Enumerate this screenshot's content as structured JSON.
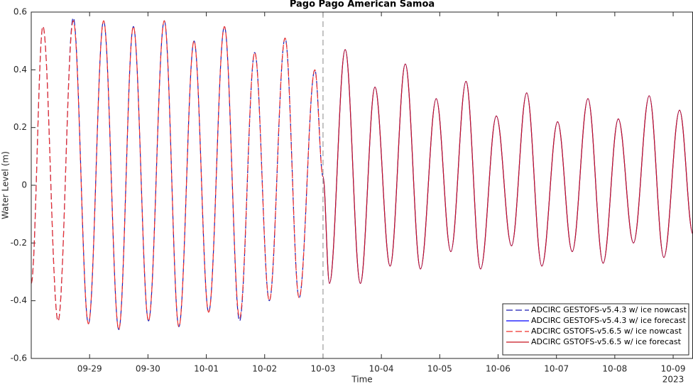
{
  "chart_data": {
    "type": "line",
    "title": "Pago Pago American Samoa",
    "xlabel": "Time",
    "ylabel": "Water Level (m)",
    "year": "2023",
    "x": [
      28.0,
      28.2,
      28.46,
      28.72,
      28.98,
      29.24,
      29.5,
      29.75,
      30.01,
      30.28,
      30.53,
      30.79,
      31.04,
      31.31,
      31.57,
      31.83,
      32.08,
      32.35,
      32.59,
      32.86,
      33.0,
      33.11,
      33.38,
      33.64,
      33.89,
      34.15,
      34.41,
      34.67,
      34.94,
      35.19,
      35.45,
      35.7,
      35.97,
      36.23,
      36.49,
      36.75,
      37.02,
      37.27,
      37.54,
      37.8,
      38.06,
      38.32,
      38.59,
      38.84,
      39.11,
      39.34
    ],
    "series": [
      {
        "name": "ADCIRC GESTOFS-v5.4.3 w/ ice nowcast",
        "color": "#1c1cb4",
        "dashed": true,
        "values": [
          -0.34,
          0.55,
          -0.47,
          0.58,
          -0.48,
          0.57,
          -0.5,
          0.55,
          -0.47,
          0.57,
          -0.49,
          0.5,
          -0.44,
          0.55,
          -0.47,
          0.46,
          -0.4,
          0.51,
          -0.39,
          0.4,
          0.03,
          null,
          null,
          null,
          null,
          null,
          null,
          null,
          null,
          null,
          null,
          null,
          null,
          null,
          null,
          null,
          null,
          null,
          null,
          null,
          null,
          null,
          null,
          null,
          null,
          null
        ]
      },
      {
        "name": "ADCIRC GESTOFS-v5.4.3 w/ ice forecast",
        "color": "#0000ff",
        "dashed": false,
        "values": [
          null,
          null,
          null,
          null,
          null,
          null,
          null,
          null,
          null,
          null,
          null,
          null,
          null,
          null,
          null,
          null,
          null,
          null,
          null,
          null,
          0.03,
          -0.34,
          0.47,
          -0.34,
          0.34,
          -0.28,
          0.42,
          -0.29,
          0.3,
          -0.23,
          0.36,
          -0.29,
          0.24,
          -0.21,
          0.32,
          -0.28,
          0.22,
          -0.23,
          0.3,
          -0.27,
          0.23,
          -0.2,
          0.31,
          -0.25,
          0.26,
          -0.17
        ]
      },
      {
        "name": "ADCIRC GSTOFS-v5.6.5 w/ ice nowcast",
        "color": "#f0302a",
        "dashed": true,
        "values": [
          -0.34,
          0.55,
          -0.47,
          0.57,
          -0.48,
          0.57,
          -0.5,
          0.55,
          -0.47,
          0.57,
          -0.49,
          0.5,
          -0.44,
          0.55,
          -0.46,
          0.46,
          -0.4,
          0.51,
          -0.39,
          0.4,
          0.03,
          null,
          null,
          null,
          null,
          null,
          null,
          null,
          null,
          null,
          null,
          null,
          null,
          null,
          null,
          null,
          null,
          null,
          null,
          null,
          null,
          null,
          null,
          null,
          null,
          null
        ]
      },
      {
        "name": "ADCIRC GSTOFS-v5.6.5 w/ ice forecast",
        "color": "#c8141e",
        "dashed": false,
        "values": [
          null,
          null,
          null,
          null,
          null,
          null,
          null,
          null,
          null,
          null,
          null,
          null,
          null,
          null,
          null,
          null,
          null,
          null,
          null,
          null,
          0.03,
          -0.34,
          0.47,
          -0.34,
          0.34,
          -0.28,
          0.42,
          -0.29,
          0.3,
          -0.23,
          0.36,
          -0.29,
          0.24,
          -0.21,
          0.32,
          -0.28,
          0.22,
          -0.23,
          0.3,
          -0.27,
          0.23,
          -0.2,
          0.31,
          -0.25,
          0.26,
          -0.17
        ]
      }
    ],
    "vline": 33,
    "xlim": [
      28.0,
      39.34
    ],
    "ylim": [
      -0.6,
      0.6
    ],
    "xticks": [
      {
        "value": 29,
        "label": "09-29"
      },
      {
        "value": 30,
        "label": "09-30"
      },
      {
        "value": 31,
        "label": "10-01"
      },
      {
        "value": 32,
        "label": "10-02"
      },
      {
        "value": 33,
        "label": "10-03"
      },
      {
        "value": 34,
        "label": "10-04"
      },
      {
        "value": 35,
        "label": "10-05"
      },
      {
        "value": 36,
        "label": "10-06"
      },
      {
        "value": 37,
        "label": "10-07"
      },
      {
        "value": 38,
        "label": "10-08"
      },
      {
        "value": 39,
        "label": "10-09"
      }
    ],
    "yticks": [
      -0.6,
      -0.4,
      -0.2,
      0,
      0.2,
      0.4,
      0.6
    ],
    "grid": false,
    "legend": "lower right"
  }
}
